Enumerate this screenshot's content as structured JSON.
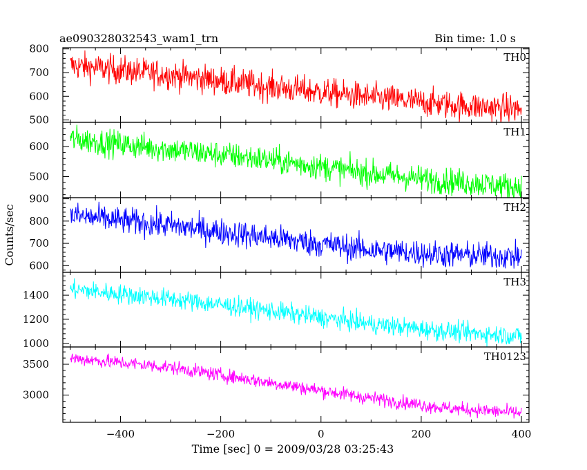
{
  "chart_data": {
    "type": "line",
    "title": "ae090328032543_wam1_trn",
    "subtitle": "Bin time: 1.0 s",
    "xlabel": "Time [sec] 0 = 2009/03/28 03:25:43",
    "ylabel": "Counts/sec",
    "xlim": [
      -515,
      415
    ],
    "xticks": [
      -400,
      -200,
      0,
      200,
      400
    ],
    "x_start": -500,
    "x_end": 400,
    "grid": false,
    "panels": [
      {
        "name": "TH0",
        "color": "#ff0000",
        "ylim": [
          490,
          805
        ],
        "yticks": [
          500,
          600,
          700,
          800
        ],
        "trend": [
          {
            "x": -500,
            "y": 730
          },
          {
            "x": -300,
            "y": 690
          },
          {
            "x": -100,
            "y": 640
          },
          {
            "x": 100,
            "y": 595
          },
          {
            "x": 250,
            "y": 565
          },
          {
            "x": 400,
            "y": 545
          }
        ],
        "noise": 30
      },
      {
        "name": "TH1",
        "color": "#00ff00",
        "ylim": [
          430,
          680
        ],
        "yticks": [
          500,
          600
        ],
        "trend": [
          {
            "x": -500,
            "y": 625
          },
          {
            "x": -300,
            "y": 590
          },
          {
            "x": -100,
            "y": 555
          },
          {
            "x": 100,
            "y": 510
          },
          {
            "x": 250,
            "y": 485
          },
          {
            "x": 400,
            "y": 465
          }
        ],
        "noise": 22
      },
      {
        "name": "TH2",
        "color": "#0000ff",
        "ylim": [
          570,
          905
        ],
        "yticks": [
          600,
          700,
          800,
          900
        ],
        "trend": [
          {
            "x": -500,
            "y": 825
          },
          {
            "x": -300,
            "y": 780
          },
          {
            "x": -100,
            "y": 725
          },
          {
            "x": 100,
            "y": 670
          },
          {
            "x": 250,
            "y": 650
          },
          {
            "x": 400,
            "y": 640
          }
        ],
        "noise": 30
      },
      {
        "name": "TH3",
        "color": "#00ffff",
        "ylim": [
          970,
          1590
        ],
        "yticks": [
          1000,
          1200,
          1400
        ],
        "trend": [
          {
            "x": -500,
            "y": 1450
          },
          {
            "x": -300,
            "y": 1370
          },
          {
            "x": -100,
            "y": 1270
          },
          {
            "x": 100,
            "y": 1160
          },
          {
            "x": 250,
            "y": 1100
          },
          {
            "x": 400,
            "y": 1060
          }
        ],
        "noise": 40
      },
      {
        "name": "TH0123",
        "color": "#ff00ff",
        "ylim": [
          2560,
          3780
        ],
        "yticks": [
          3000,
          3500
        ],
        "trend": [
          {
            "x": -500,
            "y": 3600
          },
          {
            "x": -300,
            "y": 3450
          },
          {
            "x": -100,
            "y": 3200
          },
          {
            "x": 100,
            "y": 2950
          },
          {
            "x": 250,
            "y": 2790
          },
          {
            "x": 400,
            "y": 2710
          }
        ],
        "noise": 55
      }
    ]
  }
}
